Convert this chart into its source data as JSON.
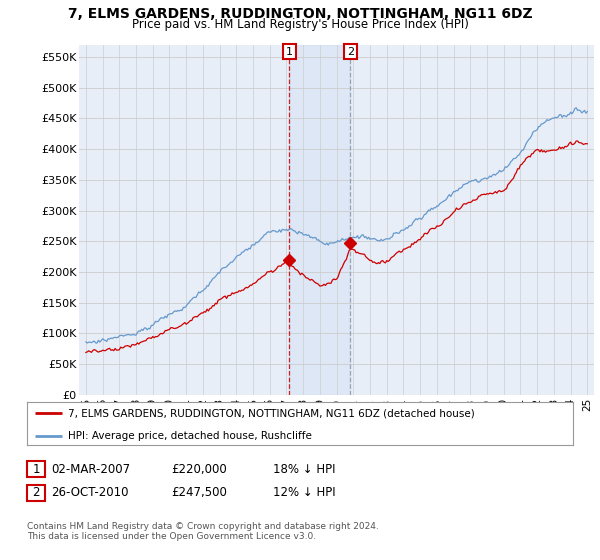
{
  "title": "7, ELMS GARDENS, RUDDINGTON, NOTTINGHAM, NG11 6DZ",
  "subtitle": "Price paid vs. HM Land Registry's House Price Index (HPI)",
  "ylabel_ticks": [
    "£0",
    "£50K",
    "£100K",
    "£150K",
    "£200K",
    "£250K",
    "£300K",
    "£350K",
    "£400K",
    "£450K",
    "£500K",
    "£550K"
  ],
  "ytick_values": [
    0,
    50000,
    100000,
    150000,
    200000,
    250000,
    300000,
    350000,
    400000,
    450000,
    500000,
    550000
  ],
  "ylim": [
    0,
    570000
  ],
  "legend_line1": "7, ELMS GARDENS, RUDDINGTON, NOTTINGHAM, NG11 6DZ (detached house)",
  "legend_line2": "HPI: Average price, detached house, Rushcliffe",
  "sale1_date": "02-MAR-2007",
  "sale1_price": 220000,
  "sale1_label": "1",
  "sale1_pct": "18% ↓ HPI",
  "sale2_date": "26-OCT-2010",
  "sale2_price": 247500,
  "sale2_label": "2",
  "sale2_pct": "12% ↓ HPI",
  "footer": "Contains HM Land Registry data © Crown copyright and database right 2024.\nThis data is licensed under the Open Government Licence v3.0.",
  "line_color_red": "#cc0000",
  "line_color_blue": "#6699cc",
  "background_color": "#ffffff",
  "plot_bg_color": "#e8eef8",
  "grid_color": "#cccccc",
  "sale1_x": 2007.17,
  "sale2_x": 2010.82,
  "xstart": 1995.0,
  "xend": 2025.0
}
